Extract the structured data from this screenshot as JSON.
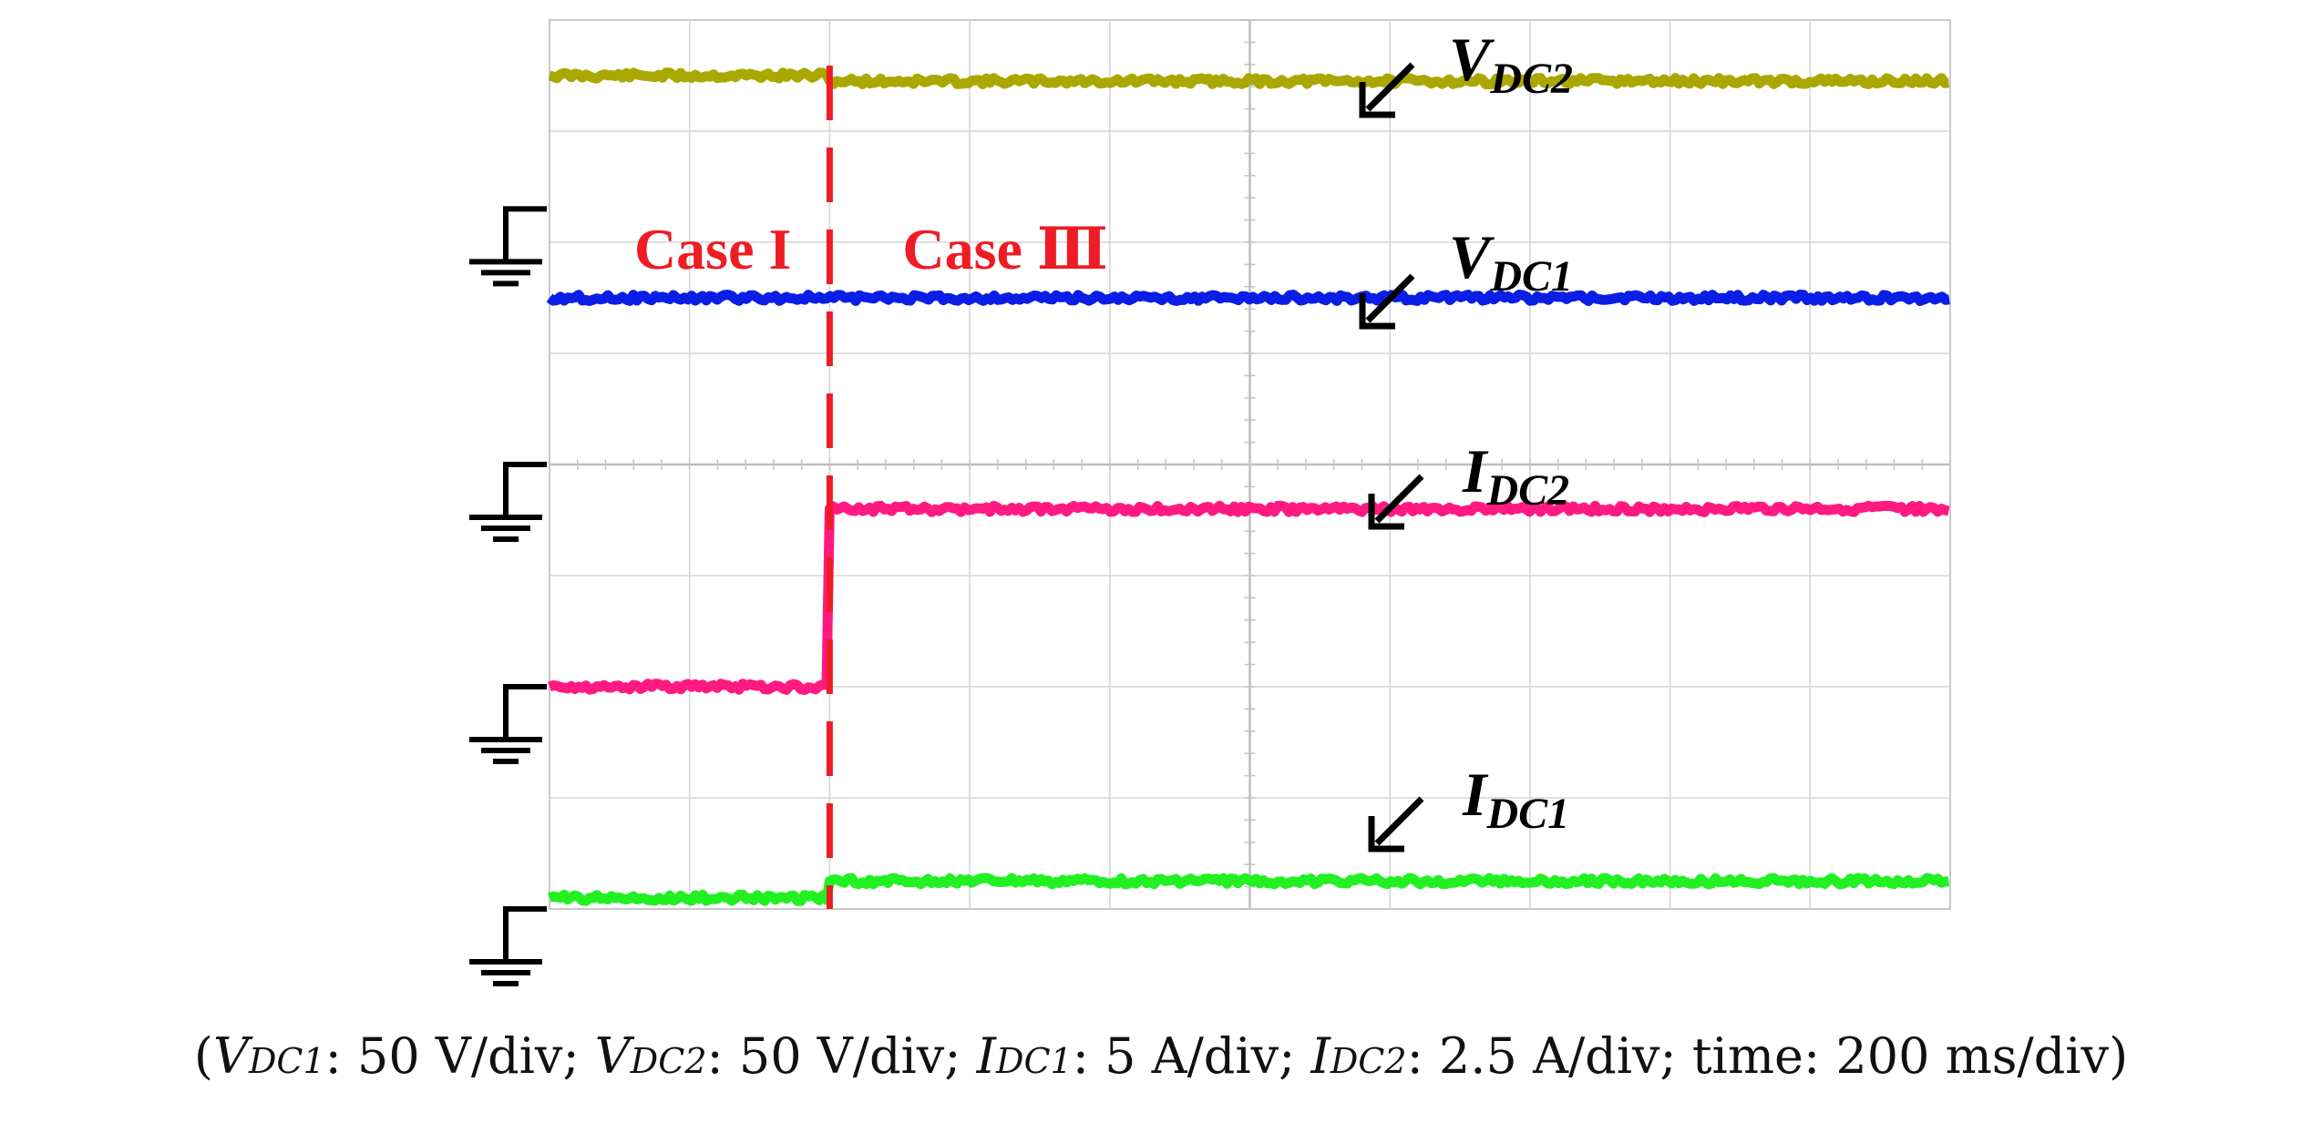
{
  "chart_data": {
    "type": "line",
    "title": "",
    "xlabel": "",
    "ylabel": "",
    "time_per_div_ms": 200,
    "x_divisions": 10,
    "y_divisions": 8,
    "event": {
      "time_div": 2,
      "labels": [
        "Case I",
        "Case Ⅲ"
      ]
    },
    "series": [
      {
        "name": "VDC2",
        "label_main": "V",
        "label_sub": "DC2",
        "color": "#aaa800",
        "scale_text": "50 V/div",
        "ground_level_div": null,
        "segments": [
          {
            "from_div": 0,
            "to_div": 2,
            "level_div": 7.5
          },
          {
            "from_div": 2,
            "to_div": 10,
            "level_div": 7.45
          }
        ]
      },
      {
        "name": "VDC1",
        "label_main": "V",
        "label_sub": "DC1",
        "color": "#0a1ee6",
        "scale_text": "50 V/div",
        "ground_level_div": 6.3,
        "segments": [
          {
            "from_div": 0,
            "to_div": 10,
            "level_div": 5.5
          }
        ]
      },
      {
        "name": "IDC2",
        "label_main": "I",
        "label_sub": "DC2",
        "color": "#ff1a82",
        "scale_text": "2.5 A/div",
        "ground_level_div": 4.0,
        "segments": [
          {
            "from_div": 0,
            "to_div": 2,
            "level_div": 2.0
          },
          {
            "from_div": 2,
            "to_div": 10,
            "level_div": 3.6
          }
        ]
      },
      {
        "name": "IDC1",
        "label_main": "I",
        "label_sub": "DC1",
        "color": "#22f022",
        "scale_text": "5 A/div",
        "ground_level_div": 0.0,
        "segments": [
          {
            "from_div": 0,
            "to_div": 2,
            "level_div": 0.1
          },
          {
            "from_div": 2,
            "to_div": 10,
            "level_div": 0.25
          }
        ]
      }
    ],
    "ground_markers_div": [
      6.3,
      4.0,
      2.0,
      0.0
    ],
    "caption": {
      "open": "(",
      "close": ")",
      "time_label": "time",
      "time_value": "200 ms/div"
    }
  }
}
